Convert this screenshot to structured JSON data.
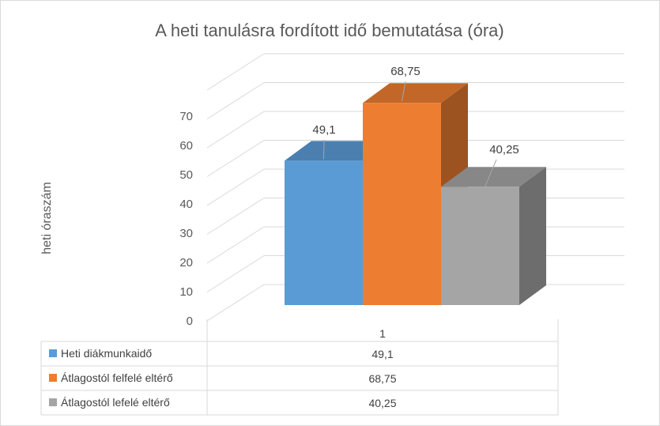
{
  "chart_data": {
    "type": "bar",
    "title": "A heti tanulásra fordított idő bemutatása (óra)",
    "ylabel": "heti óraszám",
    "xlabel": "",
    "categories": [
      "1"
    ],
    "series": [
      {
        "name": "Heti diákmunkaidő",
        "values": [
          49.1
        ],
        "value_labels": [
          "49,1"
        ],
        "color": "#5b9bd5"
      },
      {
        "name": "Átlagostól felfelé eltérő",
        "values": [
          68.75
        ],
        "value_labels": [
          "68,75"
        ],
        "color": "#ed7d31"
      },
      {
        "name": "Átlagostól lefelé eltérő",
        "values": [
          40.25
        ],
        "value_labels": [
          "40,25"
        ],
        "color": "#a5a5a5"
      }
    ],
    "yticks": [
      "0",
      "10",
      "20",
      "30",
      "40",
      "50",
      "60",
      "70"
    ],
    "ylim": [
      0,
      70
    ],
    "grid": true,
    "style": "3d-clustered-column",
    "legend": "data-table-bottom"
  }
}
